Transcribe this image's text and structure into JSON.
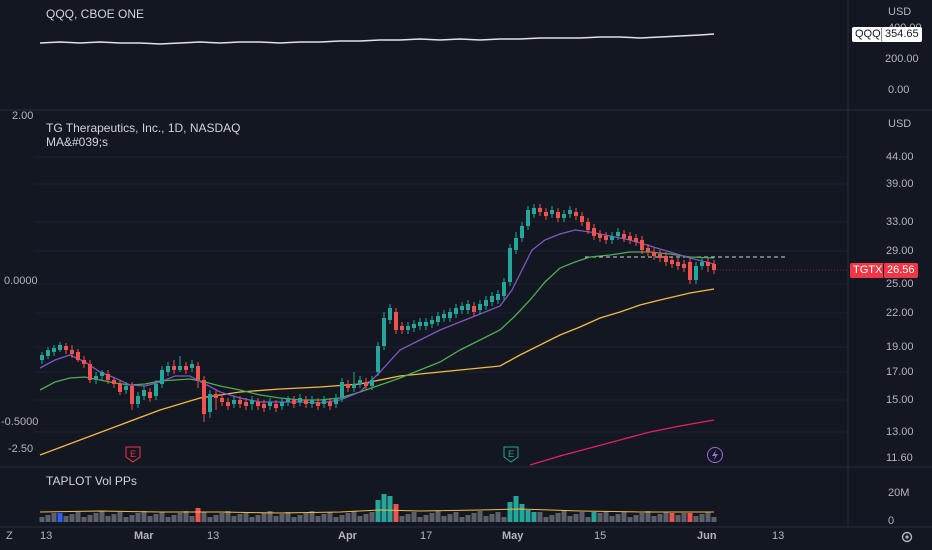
{
  "top_pane": {
    "title": "QQQ, CBOE ONE",
    "currency": "USD",
    "y_ticks": [
      "400.00",
      "200.00",
      "0.00"
    ],
    "symbol_badge": "QQQ",
    "price_badge": "354.65"
  },
  "main_pane": {
    "title": "TG Therapeutics, Inc., 1D, NASDAQ",
    "indicator": "MA&#039;s",
    "currency": "USD",
    "y_ticks": [
      "44.00",
      "39.00",
      "33.00",
      "29.00",
      "25.00",
      "22.00",
      "19.00",
      "17.00",
      "15.00",
      "13.00",
      "11.60"
    ],
    "symbol_badge": "TGTX",
    "price_badge": "26.56",
    "accent_color": "#f23645",
    "left_scale": [
      "2.00",
      "0.0000",
      "-0.5000",
      "-2.50"
    ],
    "event_markers": [
      "E",
      "E",
      "lightning"
    ]
  },
  "volume_pane": {
    "title": "TAPLOT Vol PPs",
    "y_ticks": [
      "20M",
      "0"
    ]
  },
  "x_axis": {
    "labels": [
      "13",
      "Mar",
      "13",
      "Apr",
      "17",
      "May",
      "15",
      "Jun",
      "13"
    ]
  },
  "icons": {
    "zoom_icon": "Z",
    "settings_icon": "gear-icon"
  },
  "colors": {
    "up": "#26a69a",
    "down": "#ef5350",
    "ma_fast": "#7e57c2",
    "ma_mid": "#4caf50",
    "ma_slow": "#ffb74d",
    "ma_long": "#e91e63",
    "background": "#131722"
  }
}
